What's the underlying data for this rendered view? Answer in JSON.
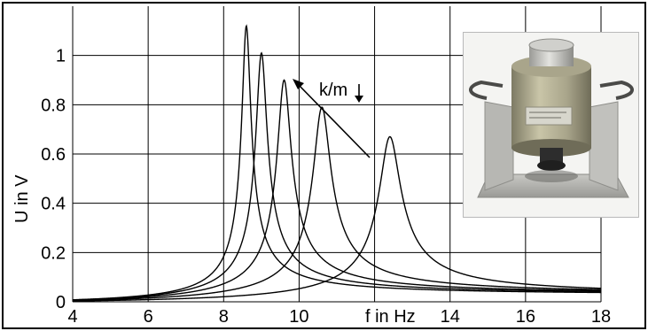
{
  "chart_data": {
    "type": "line",
    "title": "",
    "xlabel": "f in Hz",
    "ylabel": "U in V",
    "xlim": [
      4,
      18
    ],
    "ylim": [
      0,
      1.2
    ],
    "x_ticks": [
      4,
      6,
      8,
      10,
      14,
      16,
      18
    ],
    "y_ticks": [
      0,
      0.2,
      0.4,
      0.6,
      0.8,
      1
    ],
    "grid": true,
    "legend": "none",
    "annotation": "k/m",
    "series": [
      {
        "peak_x": 8.6,
        "peak_y": 1.12,
        "tail_y_at_18": 0.038
      },
      {
        "peak_x": 9.0,
        "peak_y": 1.01,
        "tail_y_at_18": 0.042
      },
      {
        "peak_x": 9.6,
        "peak_y": 0.9,
        "tail_y_at_18": 0.045
      },
      {
        "peak_x": 10.6,
        "peak_y": 0.79,
        "tail_y_at_18": 0.05
      },
      {
        "peak_x": 12.4,
        "peak_y": 0.67,
        "tail_y_at_18": 0.055
      }
    ],
    "line_color": "#000000",
    "inset": "photo-of-vibration-sensor"
  }
}
